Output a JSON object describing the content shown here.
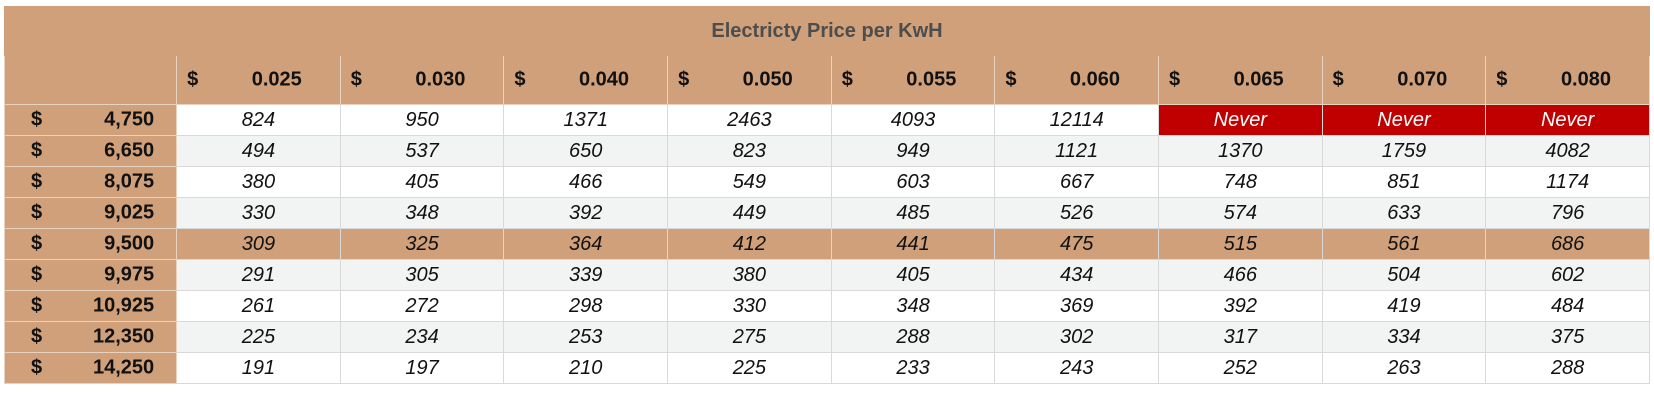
{
  "table": {
    "title": "Electricty Price per KwH",
    "currency_symbol": "$",
    "column_prices": [
      "0.025",
      "0.030",
      "0.040",
      "0.050",
      "0.055",
      "0.060",
      "0.065",
      "0.070",
      "0.080"
    ],
    "rows": [
      {
        "cost": "4,750",
        "values": [
          "824",
          "950",
          "1371",
          "2463",
          "4093",
          "12114",
          "Never",
          "Never",
          "Never"
        ]
      },
      {
        "cost": "6,650",
        "values": [
          "494",
          "537",
          "650",
          "823",
          "949",
          "1121",
          "1370",
          "1759",
          "4082"
        ]
      },
      {
        "cost": "8,075",
        "values": [
          "380",
          "405",
          "466",
          "549",
          "603",
          "667",
          "748",
          "851",
          "1174"
        ]
      },
      {
        "cost": "9,025",
        "values": [
          "330",
          "348",
          "392",
          "449",
          "485",
          "526",
          "574",
          "633",
          "796"
        ]
      },
      {
        "cost": "9,500",
        "values": [
          "309",
          "325",
          "364",
          "412",
          "441",
          "475",
          "515",
          "561",
          "686"
        ]
      },
      {
        "cost": "9,975",
        "values": [
          "291",
          "305",
          "339",
          "380",
          "405",
          "434",
          "466",
          "504",
          "602"
        ]
      },
      {
        "cost": "10,925",
        "values": [
          "261",
          "272",
          "298",
          "330",
          "348",
          "369",
          "392",
          "419",
          "484"
        ]
      },
      {
        "cost": "12,350",
        "values": [
          "225",
          "234",
          "253",
          "275",
          "288",
          "302",
          "317",
          "334",
          "375"
        ]
      },
      {
        "cost": "14,250",
        "values": [
          "191",
          "197",
          "210",
          "225",
          "233",
          "243",
          "252",
          "263",
          "288"
        ]
      }
    ]
  },
  "colors": {
    "header_bg": "#cfa07a",
    "never_bg": "#c00000",
    "alt_row_bg": "#f2f4f4"
  }
}
